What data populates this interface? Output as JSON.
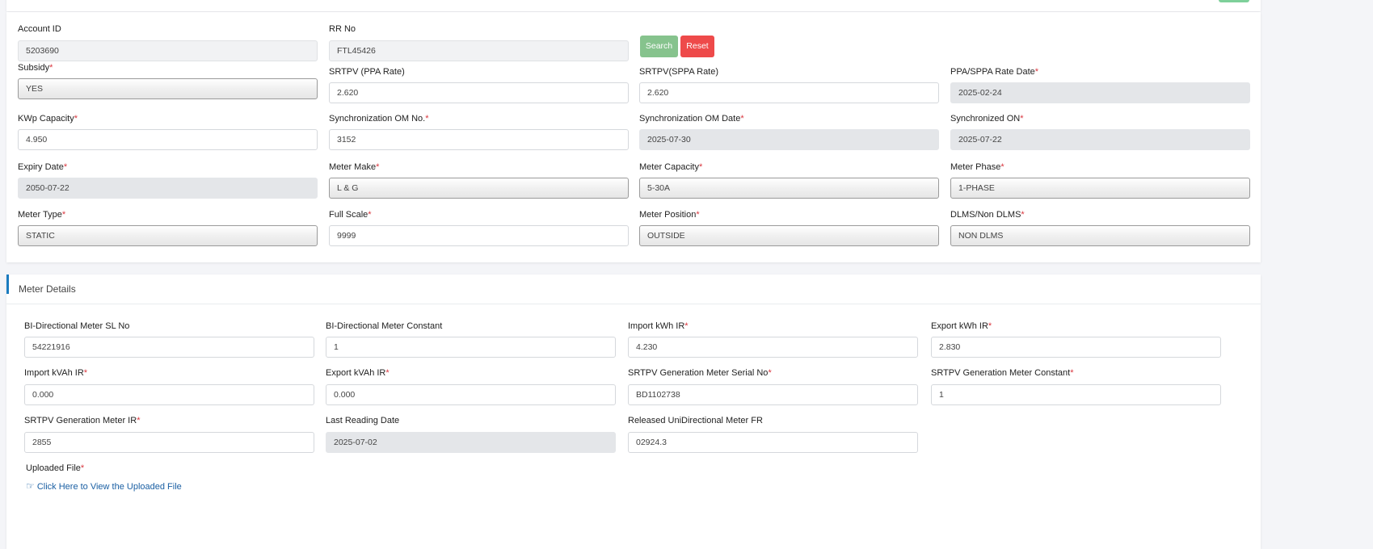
{
  "header": {
    "accent_button_color": "#7ed09a"
  },
  "search": {
    "account_id": {
      "label": "Account ID",
      "value": "5203690"
    },
    "rr_no": {
      "label": "RR No",
      "value": "FTL45426"
    },
    "search_label": "Search",
    "reset_label": "Reset"
  },
  "details": [
    {
      "label": "Subsidy",
      "required": true,
      "value": "YES",
      "kind": "select"
    },
    {
      "label": "SRTPV (PPA Rate)",
      "required": false,
      "value": "2.620",
      "kind": "text"
    },
    {
      "label": "SRTPV(SPPA Rate)",
      "required": false,
      "value": "2.620",
      "kind": "text"
    },
    {
      "label": "PPA/SPPA Rate Date",
      "required": true,
      "value": "2025-02-24",
      "kind": "readonly"
    },
    {
      "label": "KWp Capacity",
      "required": true,
      "value": "4.950",
      "kind": "text"
    },
    {
      "label": "Synchronization OM No.",
      "required": true,
      "value": "3152",
      "kind": "text"
    },
    {
      "label": "Synchronization OM Date",
      "required": true,
      "value": "2025-07-30",
      "kind": "readonly"
    },
    {
      "label": "Synchronized ON",
      "required": true,
      "value": "2025-07-22",
      "kind": "readonly"
    },
    {
      "label": "Expiry Date",
      "required": true,
      "value": "2050-07-22",
      "kind": "readonly"
    },
    {
      "label": "Meter Make",
      "required": true,
      "value": "L & G",
      "kind": "select"
    },
    {
      "label": "Meter Capacity",
      "required": true,
      "value": "5-30A",
      "kind": "select"
    },
    {
      "label": "Meter Phase",
      "required": true,
      "value": "1-PHASE",
      "kind": "select"
    },
    {
      "label": "Meter Type",
      "required": true,
      "value": "STATIC",
      "kind": "select"
    },
    {
      "label": "Full Scale",
      "required": true,
      "value": "9999",
      "kind": "text"
    },
    {
      "label": "Meter Position",
      "required": true,
      "value": "OUTSIDE",
      "kind": "select"
    },
    {
      "label": "DLMS/Non DLMS",
      "required": true,
      "value": "NON DLMS",
      "kind": "select"
    }
  ],
  "meter_details": {
    "title": "Meter Details",
    "fields": [
      {
        "label": "BI-Directional Meter SL No",
        "required": false,
        "value": "54221916",
        "kind": "text"
      },
      {
        "label": "BI-Directional Meter Constant",
        "required": false,
        "value": "1",
        "kind": "text"
      },
      {
        "label": "Import kWh IR",
        "required": true,
        "value": "4.230",
        "kind": "text"
      },
      {
        "label": "Export kWh IR",
        "required": true,
        "value": "2.830",
        "kind": "text"
      },
      {
        "label": "Import kVAh IR",
        "required": true,
        "value": "0.000",
        "kind": "text"
      },
      {
        "label": "Export kVAh IR",
        "required": true,
        "value": "0.000",
        "kind": "text"
      },
      {
        "label": "SRTPV Generation Meter Serial No",
        "required": true,
        "value": "BD1102738",
        "kind": "text"
      },
      {
        "label": "SRTPV Generation Meter Constant",
        "required": true,
        "value": "1",
        "kind": "text"
      },
      {
        "label": "SRTPV Generation Meter IR",
        "required": true,
        "value": "2855",
        "kind": "text"
      },
      {
        "label": "Last Reading Date",
        "required": false,
        "value": "2025-07-02",
        "kind": "readonly"
      },
      {
        "label": "Released UniDirectional Meter FR",
        "required": false,
        "value": "02924.3",
        "kind": "text"
      }
    ],
    "uploaded_file_label": "Uploaded File",
    "uploaded_file_link": "Click Here to View the Uploaded File"
  },
  "colors": {
    "search": "#86c38d",
    "reset": "#ee4a4a",
    "accent": "#1a7bbf",
    "link": "#1a5fa3"
  }
}
